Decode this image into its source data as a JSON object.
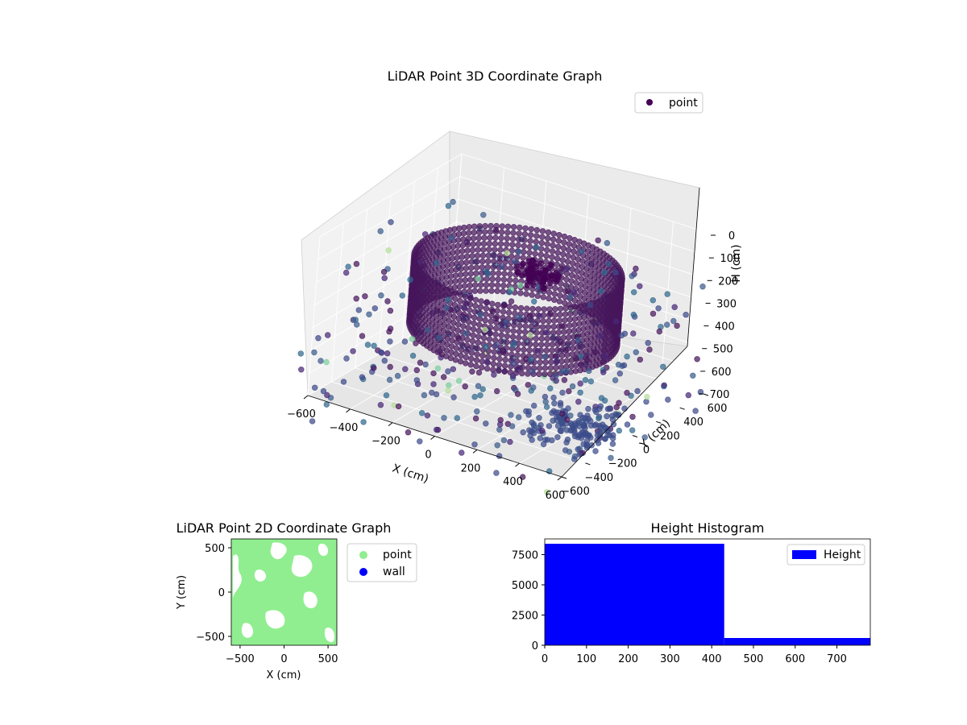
{
  "chart_data": [
    {
      "type": "scatter3d",
      "title": "LiDAR Point 3D Coordinate Graph",
      "xlabel": "X (cm)",
      "ylabel": "Y (cm)",
      "zlabel": "H (cm)",
      "xlim": [
        -600,
        600
      ],
      "ylim": [
        -600,
        600
      ],
      "zlim": [
        0,
        700
      ],
      "zinverted": true,
      "xticks": [
        "−600",
        "−400",
        "−200",
        "0",
        "200",
        "400",
        "600"
      ],
      "yticks": [
        "−600",
        "−400",
        "−200",
        "0",
        "200",
        "400",
        "600"
      ],
      "zticks": [
        "0",
        "100",
        "200",
        "300",
        "400",
        "500",
        "600",
        "700"
      ],
      "legend": [
        {
          "label": "point",
          "color": "#440154"
        }
      ],
      "legend_position": "top-right",
      "colormap": "viridis",
      "ring_wall": {
        "center_x": -60,
        "center_y": 140,
        "radius": 430,
        "height_range": [
          200,
          500
        ]
      },
      "point_count_approx": 9000
    },
    {
      "type": "scatter",
      "title": "LiDAR Point 2D Coordinate Graph",
      "xlabel": "X (cm)",
      "ylabel": "Y (cm)",
      "xlim": [
        -600,
        600
      ],
      "ylim": [
        -600,
        600
      ],
      "xticks": [
        "−500",
        "0",
        "500"
      ],
      "yticks": [
        "−500",
        "0",
        "500"
      ],
      "series": [
        {
          "name": "point",
          "color": "#90ee90"
        },
        {
          "name": "wall",
          "color": "#0000ff"
        }
      ],
      "legend_position": "outside-right"
    },
    {
      "type": "bar",
      "title": "Height Histogram",
      "xlim": [
        0,
        780
      ],
      "ylim": [
        0,
        8800
      ],
      "xticks": [
        "0",
        "100",
        "200",
        "300",
        "400",
        "500",
        "600",
        "700"
      ],
      "yticks": [
        "0",
        "2500",
        "5000",
        "7500"
      ],
      "bins": [
        {
          "from": 0,
          "to": 430,
          "count": 8400
        },
        {
          "from": 430,
          "to": 780,
          "count": 600
        }
      ],
      "series": [
        {
          "name": "Height",
          "color": "#0000ff"
        }
      ],
      "legend_position": "top-right"
    }
  ]
}
